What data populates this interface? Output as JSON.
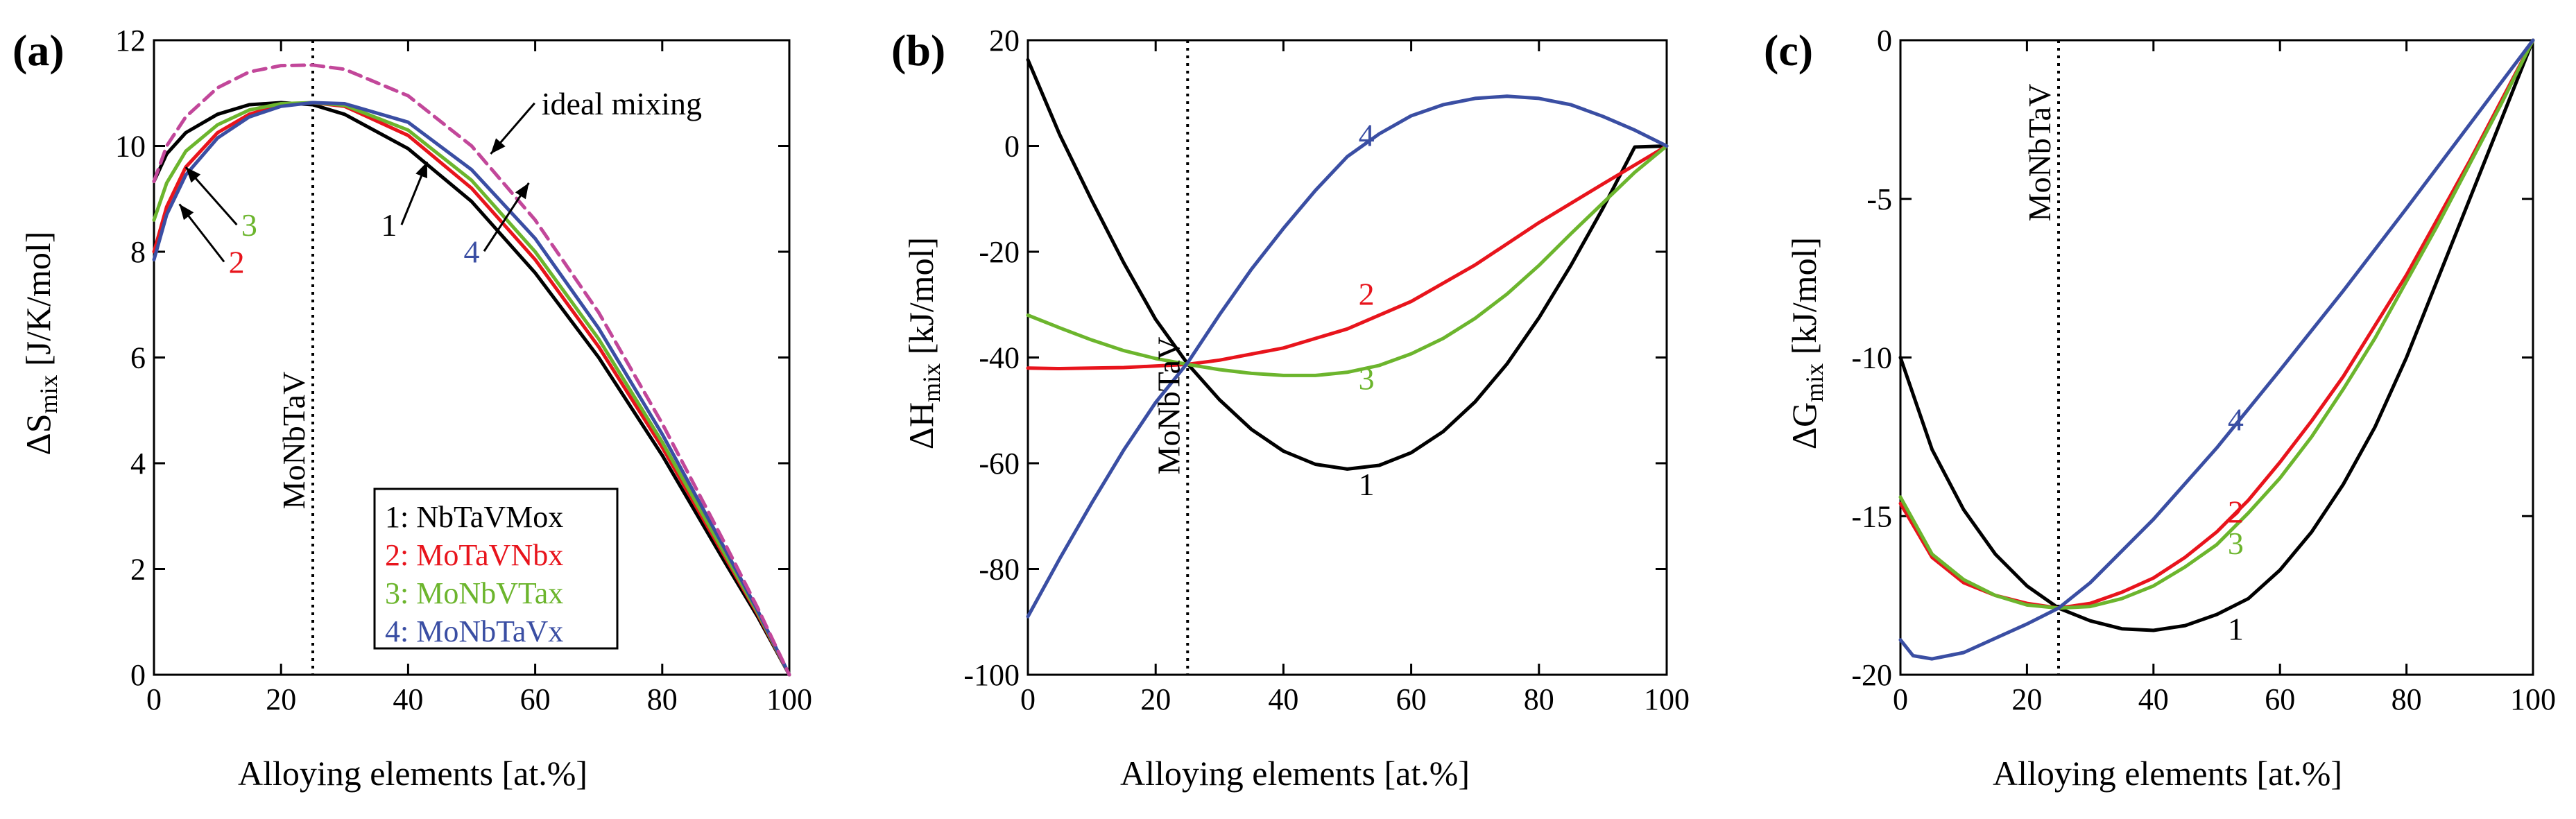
{
  "chart_data": [
    {
      "type": "line",
      "panel_label": "(a)",
      "xlabel": "Alloying elements [at.%]",
      "ylabel_main": "ΔS",
      "ylabel_sub": "mix",
      "ylabel_units": " [J/K/mol]",
      "xlim": [
        0,
        100
      ],
      "ylim": [
        0,
        12
      ],
      "xticks": [
        0,
        20,
        40,
        60,
        80,
        100
      ],
      "yticks": [
        0,
        2,
        4,
        6,
        8,
        10,
        12
      ],
      "vline": {
        "x": 25,
        "label": "MoNbTaV"
      },
      "series": [
        {
          "name": "1: NbTaVMox",
          "key": "1",
          "color": "#000000",
          "dashed": false,
          "x": [
            0,
            2,
            5,
            10,
            15,
            20,
            25,
            30,
            40,
            50,
            60,
            70,
            80,
            90,
            95,
            100
          ],
          "y": [
            9.33,
            9.85,
            10.25,
            10.6,
            10.78,
            10.82,
            10.78,
            10.6,
            9.95,
            8.95,
            7.6,
            6.0,
            4.15,
            2.1,
            1.1,
            0
          ]
        },
        {
          "name": "2: MoTaVNbx",
          "key": "2",
          "color": "#e8141c",
          "dashed": false,
          "x": [
            0,
            2,
            5,
            10,
            15,
            20,
            25,
            30,
            40,
            50,
            60,
            70,
            80,
            90,
            95,
            100
          ],
          "y": [
            8.0,
            8.85,
            9.6,
            10.25,
            10.6,
            10.78,
            10.82,
            10.75,
            10.2,
            9.2,
            7.85,
            6.2,
            4.3,
            2.2,
            1.15,
            0
          ]
        },
        {
          "name": "3: MoNbVTax",
          "key": "3",
          "color": "#6cb52d",
          "dashed": false,
          "x": [
            0,
            2,
            5,
            10,
            15,
            20,
            25,
            30,
            40,
            50,
            60,
            70,
            80,
            90,
            95,
            100
          ],
          "y": [
            8.6,
            9.3,
            9.9,
            10.4,
            10.68,
            10.8,
            10.82,
            10.77,
            10.3,
            9.35,
            8.0,
            6.35,
            4.4,
            2.25,
            1.18,
            0
          ]
        },
        {
          "name": "4: MoNbTaVx",
          "key": "4",
          "color": "#3a4ea3",
          "dashed": false,
          "x": [
            0,
            2,
            5,
            10,
            15,
            20,
            25,
            30,
            40,
            50,
            60,
            70,
            80,
            90,
            95,
            100
          ],
          "y": [
            7.85,
            8.7,
            9.45,
            10.15,
            10.55,
            10.75,
            10.82,
            10.8,
            10.45,
            9.55,
            8.25,
            6.55,
            4.55,
            2.35,
            1.22,
            0
          ]
        },
        {
          "name": "ideal mixing",
          "key": "",
          "color": "#c2479a",
          "dashed": true,
          "x": [
            0,
            2,
            5,
            10,
            15,
            20,
            25,
            30,
            40,
            50,
            60,
            70,
            80,
            90,
            95,
            100
          ],
          "y": [
            9.33,
            10.0,
            10.55,
            11.1,
            11.4,
            11.52,
            11.53,
            11.45,
            10.95,
            10.0,
            8.6,
            6.85,
            4.75,
            2.45,
            1.27,
            0
          ]
        }
      ],
      "annotations": [
        {
          "text": "ideal mixing",
          "color": "#000000",
          "at": [
            61,
            10.6
          ],
          "arrow_to": [
            53,
            9.85
          ]
        },
        {
          "text": "1",
          "color": "#000000",
          "at": [
            37,
            8.3
          ],
          "arrow_to": [
            43,
            9.7
          ]
        },
        {
          "text": "4",
          "color": "#3a4ea3",
          "at": [
            50,
            7.8
          ],
          "arrow_to": [
            59,
            9.3
          ]
        },
        {
          "text": "3",
          "color": "#6cb52d",
          "at": [
            15,
            8.3
          ],
          "arrow_to": [
            5,
            9.6
          ]
        },
        {
          "text": "2",
          "color": "#e8141c",
          "at": [
            13,
            7.6
          ],
          "arrow_to": [
            4,
            8.9
          ]
        }
      ],
      "legend_position": "bottom-center"
    },
    {
      "type": "line",
      "panel_label": "(b)",
      "xlabel": "Alloying elements [at.%]",
      "ylabel_main": "ΔH",
      "ylabel_sub": "mix",
      "ylabel_units": " [kJ/mol]",
      "xlim": [
        0,
        100
      ],
      "ylim": [
        -100,
        20
      ],
      "xticks": [
        0,
        20,
        40,
        60,
        80,
        100
      ],
      "yticks": [
        -100,
        -80,
        -60,
        -40,
        -20,
        0,
        20
      ],
      "vline": {
        "x": 25,
        "label": "MoNbTaV"
      },
      "series": [
        {
          "name": "1",
          "key": "1",
          "color": "#000000",
          "dashed": false,
          "x": [
            0,
            5,
            10,
            15,
            20,
            25,
            30,
            35,
            40,
            45,
            50,
            55,
            60,
            65,
            70,
            75,
            80,
            85,
            90,
            95,
            100
          ],
          "y": [
            16.3,
            2.1,
            -10.3,
            -22.1,
            -32.8,
            -41.2,
            -48.0,
            -53.6,
            -57.7,
            -60.2,
            -61.1,
            -60.4,
            -58.0,
            -54.0,
            -48.4,
            -41.2,
            -32.5,
            -22.6,
            -11.8,
            -0.2,
            0
          ]
        },
        {
          "name": "2",
          "key": "2",
          "color": "#e8141c",
          "dashed": false,
          "x": [
            0,
            5,
            10,
            15,
            20,
            25,
            30,
            40,
            50,
            60,
            70,
            80,
            90,
            100
          ],
          "y": [
            -42.0,
            -42.1,
            -42.0,
            -41.9,
            -41.6,
            -41.3,
            -40.5,
            -38.2,
            -34.6,
            -29.4,
            -22.5,
            -14.5,
            -7.2,
            0
          ]
        },
        {
          "name": "3",
          "key": "3",
          "color": "#6cb52d",
          "dashed": false,
          "x": [
            0,
            5,
            10,
            15,
            20,
            25,
            30,
            35,
            40,
            45,
            50,
            55,
            60,
            65,
            70,
            75,
            80,
            85,
            90,
            95,
            100
          ],
          "y": [
            -32.0,
            -34.4,
            -36.7,
            -38.7,
            -40.2,
            -41.3,
            -42.3,
            -43.0,
            -43.4,
            -43.4,
            -42.8,
            -41.5,
            -39.3,
            -36.4,
            -32.6,
            -28.0,
            -22.6,
            -16.6,
            -10.8,
            -5.0,
            0
          ]
        },
        {
          "name": "4",
          "key": "4",
          "color": "#3a4ea3",
          "dashed": false,
          "x": [
            0,
            5,
            10,
            15,
            20,
            25,
            30,
            35,
            40,
            45,
            50,
            55,
            60,
            65,
            70,
            75,
            80,
            85,
            90,
            95,
            100
          ],
          "y": [
            -89.0,
            -78.0,
            -67.5,
            -57.5,
            -48.5,
            -41.0,
            -31.9,
            -23.3,
            -15.6,
            -8.4,
            -2.0,
            2.3,
            5.7,
            7.8,
            9.0,
            9.4,
            9.0,
            7.8,
            5.6,
            3.0,
            0
          ]
        }
      ],
      "annotations": [
        {
          "text": "1",
          "color": "#000000",
          "at": [
            53,
            -66
          ]
        },
        {
          "text": "2",
          "color": "#e8141c",
          "at": [
            53,
            -30
          ]
        },
        {
          "text": "3",
          "color": "#6cb52d",
          "at": [
            53,
            -46
          ]
        },
        {
          "text": "4",
          "color": "#3a4ea3",
          "at": [
            53,
            0
          ]
        }
      ]
    },
    {
      "type": "line",
      "panel_label": "(c)",
      "xlabel": "Alloying elements [at.%]",
      "ylabel_main": "ΔG",
      "ylabel_sub": "mix",
      "ylabel_units": " [kJ/mol]",
      "xlim": [
        0,
        100
      ],
      "ylim": [
        -20,
        0
      ],
      "xticks": [
        0,
        20,
        40,
        60,
        80,
        100
      ],
      "yticks": [
        -20,
        -15,
        -10,
        -5,
        0
      ],
      "vline": {
        "x": 25,
        "label": "MoNbTaV"
      },
      "series": [
        {
          "name": "1",
          "key": "1",
          "color": "#000000",
          "dashed": false,
          "x": [
            0,
            5,
            10,
            15,
            20,
            25,
            30,
            35,
            40,
            45,
            50,
            55,
            60,
            65,
            70,
            75,
            80,
            85,
            90,
            95,
            100
          ],
          "y": [
            -10.0,
            -12.9,
            -14.8,
            -16.2,
            -17.2,
            -17.9,
            -18.3,
            -18.55,
            -18.6,
            -18.45,
            -18.1,
            -17.6,
            -16.7,
            -15.5,
            -14.0,
            -12.2,
            -10.0,
            -7.5,
            -5.0,
            -2.5,
            0
          ]
        },
        {
          "name": "2",
          "key": "2",
          "color": "#e8141c",
          "dashed": false,
          "x": [
            0,
            5,
            10,
            15,
            20,
            25,
            30,
            35,
            40,
            45,
            50,
            55,
            60,
            65,
            70,
            75,
            80,
            85,
            90,
            95,
            100
          ],
          "y": [
            -14.6,
            -16.3,
            -17.1,
            -17.5,
            -17.75,
            -17.9,
            -17.75,
            -17.4,
            -16.95,
            -16.3,
            -15.5,
            -14.5,
            -13.3,
            -12.0,
            -10.6,
            -9.0,
            -7.4,
            -5.6,
            -3.8,
            -1.9,
            0
          ]
        },
        {
          "name": "3",
          "key": "3",
          "color": "#6cb52d",
          "dashed": false,
          "x": [
            0,
            5,
            10,
            15,
            20,
            25,
            30,
            35,
            40,
            45,
            50,
            55,
            60,
            65,
            70,
            75,
            80,
            85,
            90,
            95,
            100
          ],
          "y": [
            -14.4,
            -16.2,
            -17.0,
            -17.5,
            -17.8,
            -17.9,
            -17.85,
            -17.6,
            -17.2,
            -16.6,
            -15.9,
            -14.9,
            -13.8,
            -12.5,
            -11.0,
            -9.4,
            -7.6,
            -5.8,
            -3.9,
            -2.0,
            0
          ]
        },
        {
          "name": "4",
          "key": "4",
          "color": "#3a4ea3",
          "dashed": false,
          "x": [
            0,
            2,
            5,
            10,
            15,
            20,
            25,
            30,
            40,
            50,
            60,
            70,
            80,
            90,
            100
          ],
          "y": [
            -18.9,
            -19.4,
            -19.5,
            -19.3,
            -18.85,
            -18.4,
            -17.9,
            -17.1,
            -15.1,
            -12.85,
            -10.4,
            -7.9,
            -5.3,
            -2.65,
            0
          ]
        }
      ],
      "annotations": [
        {
          "text": "1",
          "color": "#000000",
          "at": [
            53,
            -18.9
          ]
        },
        {
          "text": "2",
          "color": "#e8141c",
          "at": [
            53,
            -15.2
          ]
        },
        {
          "text": "3",
          "color": "#6cb52d",
          "at": [
            53,
            -16.2
          ]
        },
        {
          "text": "4",
          "color": "#3a4ea3",
          "at": [
            53,
            -12.3
          ]
        }
      ]
    }
  ]
}
